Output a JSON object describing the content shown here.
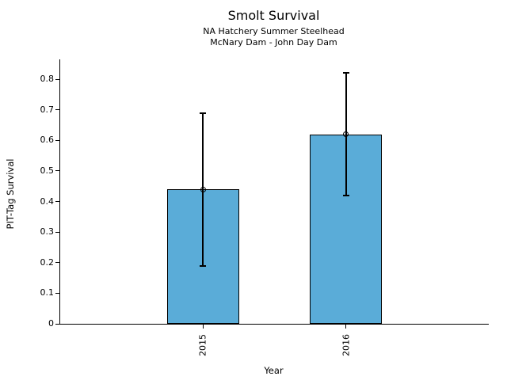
{
  "chart_data": {
    "type": "bar",
    "title": "Smolt Survival",
    "subtitle_line1": "NA Hatchery Summer Steelhead",
    "subtitle_line2": "McNary Dam - John Day Dam",
    "xlabel": "Year",
    "ylabel": "PIT-Tag Survival",
    "categories": [
      "2015",
      "2016"
    ],
    "values": [
      0.44,
      0.62
    ],
    "error_low": [
      0.19,
      0.42
    ],
    "error_high": [
      0.69,
      0.82
    ],
    "ylim": [
      0,
      0.865
    ],
    "yticks": [
      0,
      0.1,
      0.2,
      0.3,
      0.4,
      0.5,
      0.6,
      0.7,
      0.8
    ],
    "ytick_labels": [
      "0",
      "0.1",
      "0.2",
      "0.3",
      "0.4",
      "0.5",
      "0.6",
      "0.7",
      "0.8"
    ],
    "grid": false,
    "legend": "none",
    "bar_color": "#5aacd8",
    "bar_edge_color": "#000000",
    "error_color": "#000000",
    "marker": "open-circle"
  }
}
